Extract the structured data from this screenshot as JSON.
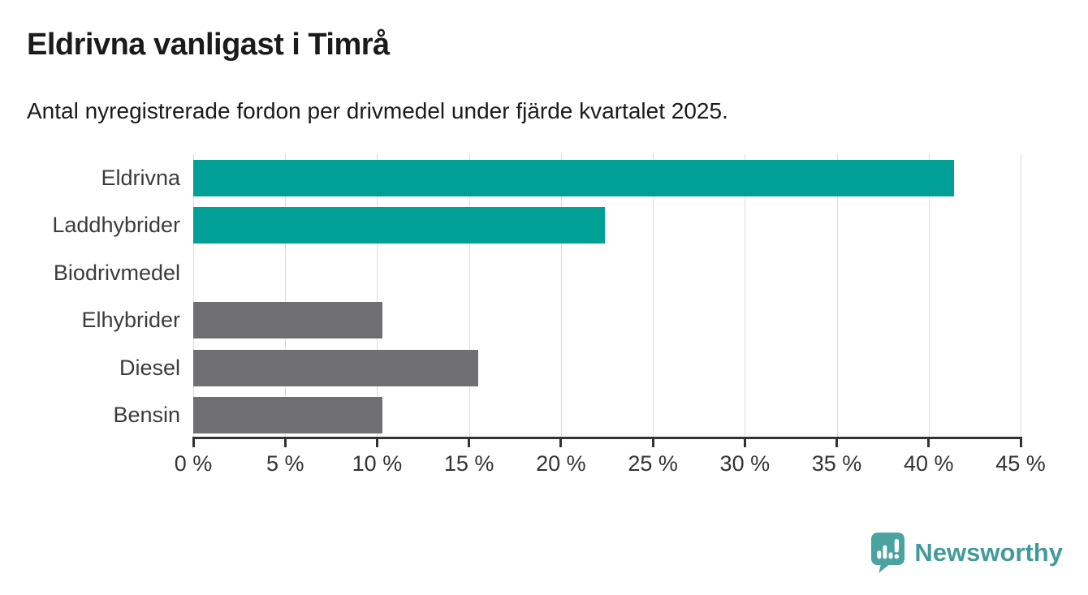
{
  "chart_data": {
    "type": "bar",
    "orientation": "horizontal",
    "title": "Eldrivna vanligast i Timrå",
    "subtitle": "Antal nyregistrerade fordon per drivmedel under fjärde kvartalet 2025.",
    "categories": [
      "Eldrivna",
      "Laddhybrider",
      "Biodrivmedel",
      "Elhybrider",
      "Diesel",
      "Bensin"
    ],
    "values": [
      41.4,
      22.4,
      0,
      10.3,
      15.5,
      10.3
    ],
    "unit": "%",
    "xlim": [
      0,
      45
    ],
    "x_ticks": [
      0,
      5,
      10,
      15,
      20,
      25,
      30,
      35,
      40,
      45
    ],
    "x_tick_labels": [
      "0 %",
      "5 %",
      "10 %",
      "15 %",
      "20 %",
      "25 %",
      "30 %",
      "35 %",
      "40 %",
      "45 %"
    ],
    "bar_colors": [
      "#00a096",
      "#00a096",
      "#6e6e73",
      "#6e6e73",
      "#6e6e73",
      "#6e6e73"
    ],
    "grid": true,
    "legend": false
  },
  "branding": {
    "logo_text": "Newsworthy",
    "logo_icon": "newsworthy-bar-chart-pin-icon",
    "logo_color": "#429b9a"
  },
  "colors": {
    "highlight": "#00a096",
    "neutral": "#6e6e73",
    "gridline": "#dcdcdc",
    "axis": "#333333",
    "title_text": "#1b1b1b",
    "label_text": "#3b3b3b"
  }
}
